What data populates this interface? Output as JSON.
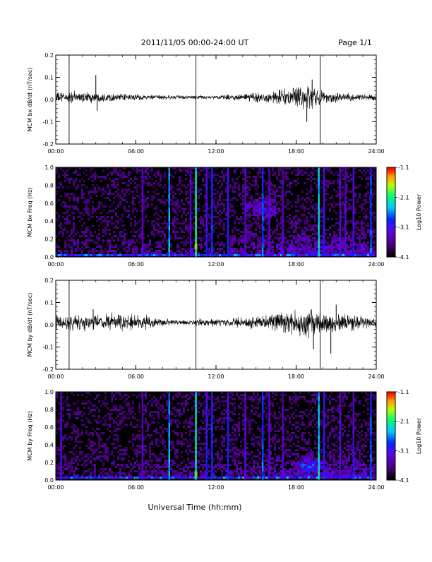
{
  "header": {
    "title": "2011/11/05   00:00-24:00 UT",
    "page": "Page 1/1"
  },
  "footer": {
    "xlabel": "Universal Time (hh:mm)"
  },
  "colors": {
    "line": "#000000",
    "axis": "#000000",
    "spectrogram_background": "#000000"
  },
  "chart_data": [
    {
      "type": "line",
      "ylabel": "MCM bx dB/dt (nT/sec)",
      "xticks": [
        "00:00",
        "06:00",
        "12:00",
        "18:00",
        "24:00"
      ],
      "xlim_hours": [
        0,
        24
      ],
      "ylim": [
        -0.2,
        0.2
      ],
      "yticks": [
        "0.2",
        "0.1",
        "0.0",
        "-0.1",
        "-0.2"
      ],
      "marker_lines_hours": [
        1.0,
        10.5,
        19.8
      ],
      "noise_envelope": {
        "x_hours": [
          0,
          1,
          2,
          3,
          4,
          5,
          6,
          7,
          8,
          9,
          10,
          11,
          12,
          13,
          14,
          15,
          16,
          17,
          18,
          19,
          20,
          21,
          22,
          23,
          24
        ],
        "amplitude": [
          0.02,
          0.022,
          0.022,
          0.02,
          0.015,
          0.012,
          0.012,
          0.01,
          0.008,
          0.008,
          0.008,
          0.008,
          0.008,
          0.01,
          0.012,
          0.02,
          0.022,
          0.035,
          0.045,
          0.045,
          0.03,
          0.02,
          0.015,
          0.012,
          0.012
        ]
      },
      "spikes": [
        {
          "x_hours": 3.0,
          "y": 0.11
        },
        {
          "x_hours": 3.1,
          "y": -0.05
        },
        {
          "x_hours": 18.8,
          "y": -0.1
        },
        {
          "x_hours": 19.2,
          "y": 0.09
        }
      ]
    },
    {
      "type": "heatmap",
      "ylabel": "MCM bx Freq (Hz)",
      "xticks": [
        "00:00",
        "06:00",
        "12:00",
        "18:00",
        "24:00"
      ],
      "xlim_hours": [
        0,
        24
      ],
      "ylim": [
        0.0,
        1.0
      ],
      "yticks": [
        "1.0",
        "0.8",
        "0.6",
        "0.4",
        "0.2",
        "0.0"
      ],
      "colorbar": {
        "label": "Log10 Power",
        "min": -4.1,
        "max": -1.1,
        "ticks": [
          "-1.1",
          "-2.1",
          "-3.1",
          "-4.1"
        ]
      },
      "vertical_lines": [
        {
          "x_hours": 6.5,
          "level": -3.1
        },
        {
          "x_hours": 8.5,
          "level": -2.3
        },
        {
          "x_hours": 10.1,
          "level": -3.0
        },
        {
          "x_hours": 10.5,
          "level": -1.8
        },
        {
          "x_hours": 11.3,
          "level": -2.8
        },
        {
          "x_hours": 11.7,
          "level": -2.6
        },
        {
          "x_hours": 12.9,
          "level": -2.7
        },
        {
          "x_hours": 14.2,
          "level": -3.0
        },
        {
          "x_hours": 15.5,
          "level": -2.5
        },
        {
          "x_hours": 16.0,
          "level": -3.0
        },
        {
          "x_hours": 17.0,
          "level": -3.1
        },
        {
          "x_hours": 19.7,
          "level": -2.1
        },
        {
          "x_hours": 20.1,
          "level": -2.8
        },
        {
          "x_hours": 21.3,
          "level": -3.0
        },
        {
          "x_hours": 21.7,
          "level": -3.1
        },
        {
          "x_hours": 22.3,
          "level": -2.9
        },
        {
          "x_hours": 23.6,
          "level": -2.5
        }
      ],
      "low_frequency_band_level": -3.0,
      "hotspot": {
        "x_hours": 10.5,
        "freq": 0.1,
        "level": -1.3
      },
      "blob": {
        "x_hours": 15.5,
        "freq": 0.55,
        "level": -3.2
      }
    },
    {
      "type": "line",
      "ylabel": "MCM by dB/dt (nT/sec)",
      "xticks": [
        "00:00",
        "06:00",
        "12:00",
        "18:00",
        "24:00"
      ],
      "xlim_hours": [
        0,
        24
      ],
      "ylim": [
        -0.2,
        0.2
      ],
      "yticks": [
        "0.2",
        "0.1",
        "0.0",
        "-0.1",
        "-0.2"
      ],
      "marker_lines_hours": [
        1.0,
        10.5,
        19.8
      ],
      "noise_envelope": {
        "x_hours": [
          0,
          1,
          2,
          3,
          4,
          5,
          6,
          7,
          8,
          9,
          10,
          11,
          12,
          13,
          14,
          15,
          16,
          17,
          18,
          19,
          20,
          21,
          22,
          23,
          24
        ],
        "amplitude": [
          0.025,
          0.03,
          0.03,
          0.03,
          0.03,
          0.03,
          0.03,
          0.025,
          0.015,
          0.01,
          0.01,
          0.015,
          0.015,
          0.015,
          0.02,
          0.025,
          0.03,
          0.04,
          0.05,
          0.055,
          0.055,
          0.04,
          0.03,
          0.025,
          0.02
        ]
      },
      "spikes": [
        {
          "x_hours": 2.8,
          "y": 0.07
        },
        {
          "x_hours": 19.3,
          "y": -0.11
        },
        {
          "x_hours": 20.6,
          "y": -0.13
        },
        {
          "x_hours": 21.0,
          "y": 0.09
        }
      ]
    },
    {
      "type": "heatmap",
      "ylabel": "MCM by Freq (Hz)",
      "xticks": [
        "00:00",
        "06:00",
        "12:00",
        "18:00",
        "24:00"
      ],
      "xlim_hours": [
        0,
        24
      ],
      "ylim": [
        0.0,
        1.0
      ],
      "yticks": [
        "1.0",
        "0.8",
        "0.6",
        "0.4",
        "0.2",
        "0.0"
      ],
      "colorbar": {
        "label": "Log10 Power",
        "min": -4.1,
        "max": -1.1,
        "ticks": [
          "-1.1",
          "-2.1",
          "-3.1",
          "-4.1"
        ]
      },
      "vertical_lines": [
        {
          "x_hours": 0.4,
          "level": -3.0
        },
        {
          "x_hours": 6.5,
          "level": -3.1
        },
        {
          "x_hours": 8.5,
          "level": -2.3
        },
        {
          "x_hours": 10.5,
          "level": -1.9
        },
        {
          "x_hours": 11.3,
          "level": -2.8
        },
        {
          "x_hours": 11.7,
          "level": -2.6
        },
        {
          "x_hours": 12.9,
          "level": -2.7
        },
        {
          "x_hours": 14.2,
          "level": -3.0
        },
        {
          "x_hours": 15.5,
          "level": -2.5
        },
        {
          "x_hours": 16.0,
          "level": -3.0
        },
        {
          "x_hours": 17.0,
          "level": -3.1
        },
        {
          "x_hours": 19.7,
          "level": -2.1
        },
        {
          "x_hours": 20.1,
          "level": -2.8
        },
        {
          "x_hours": 21.3,
          "level": -3.0
        },
        {
          "x_hours": 22.3,
          "level": -2.9
        },
        {
          "x_hours": 23.6,
          "level": -2.5
        }
      ],
      "low_frequency_band_level": -3.0,
      "hotspot": {
        "x_hours": 10.5,
        "freq": 0.05,
        "level": -1.5
      },
      "blob": {
        "x_hours": 19.0,
        "freq": 0.15,
        "level": -2.9
      }
    }
  ]
}
